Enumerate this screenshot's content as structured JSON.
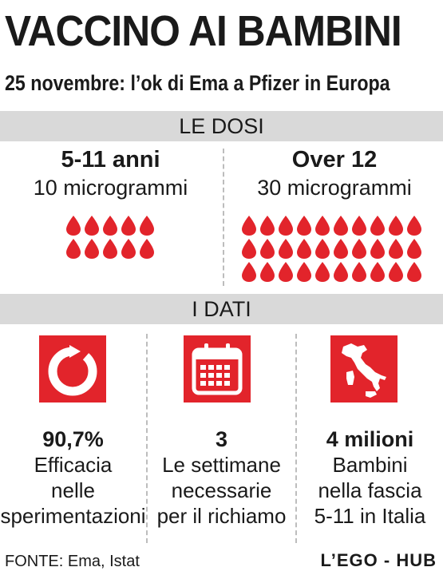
{
  "header": {
    "title": "VACCINO AI BAMBINI",
    "subtitle": "25 novembre: l’ok di Ema a Pfizer in Europa"
  },
  "doses": {
    "section_label": "LE DOSI",
    "left": {
      "group": "5-11 anni",
      "amount": "10 microgrammi",
      "drops": 10
    },
    "right": {
      "group": "Over 12",
      "amount": "30 microgrammi",
      "drops": 30
    }
  },
  "data_section": {
    "section_label": "I DATI",
    "stats": [
      {
        "icon": "efficacy-ring-icon",
        "value": "90,7%",
        "lines": [
          "Efficacia",
          "nelle",
          "sperimentazioni"
        ]
      },
      {
        "icon": "calendar-icon",
        "value": "3",
        "lines": [
          "Le settimane",
          "necessarie",
          "per il richiamo"
        ]
      },
      {
        "icon": "italy-map-icon",
        "value": "4 milioni",
        "lines": [
          "Bambini",
          "nella fascia",
          "5-11 in Italia"
        ]
      }
    ]
  },
  "footer": {
    "source": "FONTE: Ema, Istat",
    "brand": "L’EGO - HUB"
  },
  "colors": {
    "accent": "#e2242b",
    "band": "#d9d9d9"
  }
}
